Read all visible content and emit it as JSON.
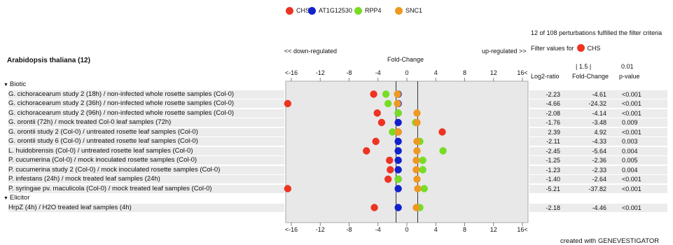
{
  "legend": [
    {
      "name": "CHS",
      "color": "#ee3322"
    },
    {
      "name": "AT1G12530",
      "color": "#1122cc"
    },
    {
      "name": "RPP4",
      "color": "#77dd22"
    },
    {
      "name": "SNC1",
      "color": "#ee9922"
    }
  ],
  "header": {
    "filter_summary": "12 of 108 perturbations fulfilled the filter criteria",
    "filter_values_label": "Filter values for",
    "filter_gene": "CHS",
    "organism": "Arabidopsis thaliana (12)",
    "down_label": "<< down-regulated",
    "up_label": "up-regulated >>",
    "fold_change_title": "Fold-Change",
    "threshold_fc": "| 1.5 |",
    "threshold_p": "0.01",
    "col_log2": "Log2-ratio",
    "col_fc": "Fold-Change",
    "col_p": "p-value"
  },
  "footer": {
    "credit": "created with GENEVESTIGATOR"
  },
  "chart_data": {
    "type": "scatter",
    "xlabel": "Fold-Change",
    "xlim": [
      -16,
      16
    ],
    "tick_labels": [
      "<-16",
      "-12",
      "-8",
      "-4",
      "0",
      "4",
      "8",
      "12",
      "16<"
    ],
    "tick_positions": [
      -16,
      -12,
      -8,
      -4,
      0,
      4,
      8,
      12,
      16
    ],
    "threshold_lines": [
      -1.5,
      1.5
    ],
    "genes": [
      "CHS",
      "AT1G12530",
      "RPP4",
      "SNC1"
    ],
    "gene_colors": [
      "#ee3322",
      "#1122cc",
      "#77dd22",
      "#ee9922"
    ],
    "groups": [
      {
        "name": "Biotic",
        "rows": [
          {
            "label": "G. cichoracearum study 2 (18h) / non-infected whole rosette samples (Col-0)",
            "values": [
              -4.6,
              -1.2,
              -2.9,
              -1.3
            ],
            "log2": "-2.23",
            "fc": "-4.61",
            "p": "<0.001"
          },
          {
            "label": "G. cichoracearum study 2 (36h) / non-infected whole rosette samples (Col-0)",
            "values": [
              -16.5,
              -1.2,
              -2.6,
              -1.3
            ],
            "log2": "-4.66",
            "fc": "-24.32",
            "p": "<0.001"
          },
          {
            "label": "G. cichoracearum study 2 (96h) / non-infected whole rosette samples (Col-0)",
            "values": [
              -4.1,
              -1.2,
              -1.2,
              1.4
            ],
            "log2": "-2.08",
            "fc": "-4.14",
            "p": "<0.001"
          },
          {
            "label": "G. orontii (72h) / mock treated Col-0 leaf samples (72h)",
            "values": [
              -3.5,
              -1.2,
              1.2,
              1.4
            ],
            "log2": "-1.76",
            "fc": "-3.48",
            "p": "0.009"
          },
          {
            "label": "G. orontii study 2 (Col-0) / untreated rosette leaf samples (Col-0)",
            "values": [
              4.9,
              -1.2,
              -2.0,
              -1.2
            ],
            "log2": "2.39",
            "fc": "4.92",
            "p": "<0.001"
          },
          {
            "label": "G. orontii study 6 (Col-0) / untreated rosette leaf samples (Col-0)",
            "values": [
              -4.3,
              -1.2,
              1.8,
              1.4
            ],
            "log2": "-2.11",
            "fc": "-4.33",
            "p": "0.003"
          },
          {
            "label": "L. huidobrensis (Col-0) / untreated rosette leaf samples (Col-0)",
            "values": [
              -5.6,
              -1.2,
              5.0,
              1.4
            ],
            "log2": "-2.45",
            "fc": "-5.64",
            "p": "0.004"
          },
          {
            "label": "P. cucumerina (Col-0) / mock inoculated rosette samples (Col-0)",
            "values": [
              -2.4,
              -1.2,
              2.2,
              1.3
            ],
            "log2": "-1.25",
            "fc": "-2.36",
            "p": "0.005"
          },
          {
            "label": "P. cucumerina study 2 (Col-0) / mock inoculated rosette samples (Col-0)",
            "values": [
              -2.3,
              -1.2,
              2.2,
              1.3
            ],
            "log2": "-1.23",
            "fc": "-2.33",
            "p": "0.004"
          },
          {
            "label": "P. infestans (24h) / mock treated leaf samples (24h)",
            "values": [
              -2.6,
              -1.2,
              -1.2,
              1.4
            ],
            "log2": "-1.40",
            "fc": "-2.64",
            "p": "<0.001"
          },
          {
            "label": "P. syringae pv. maculicola (Col-0) / mock treated leaf samples (Col-0)",
            "values": [
              -16.5,
              -1.2,
              2.4,
              1.5
            ],
            "log2": "-5.21",
            "fc": "-37.82",
            "p": "<0.001"
          }
        ]
      },
      {
        "name": "Elicitor",
        "rows": [
          {
            "label": "HrpZ (4h) / H2O treated leaf samples (4h)",
            "values": [
              -4.5,
              -1.2,
              1.8,
              1.3
            ],
            "log2": "-2.18",
            "fc": "-4.46",
            "p": "<0.001"
          }
        ]
      }
    ]
  }
}
